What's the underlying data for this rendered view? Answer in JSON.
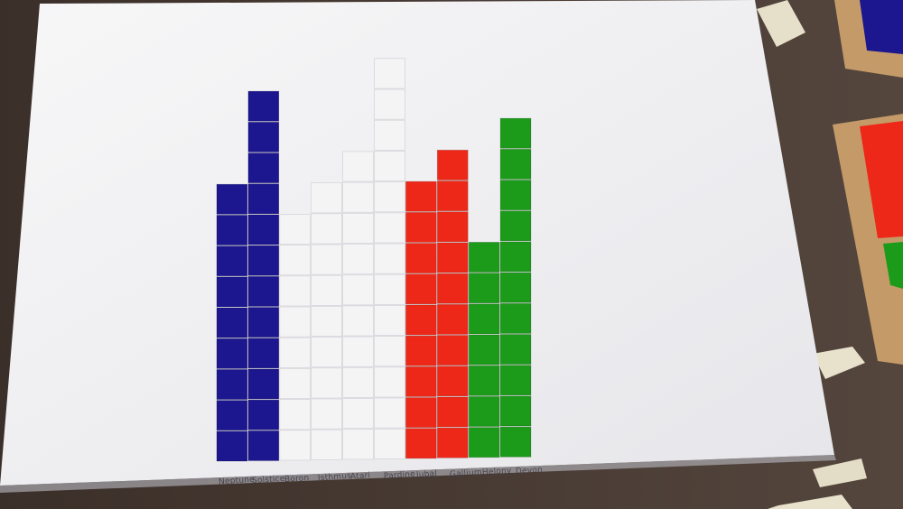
{
  "chart_data": {
    "type": "bar",
    "categories": [
      "Neptune",
      "Solstice",
      "Boron",
      "Isthmus",
      "Atari",
      "Pardine",
      "Jubal",
      "Gallium",
      "Helony",
      "Devon"
    ],
    "values": [
      9,
      12,
      8,
      9,
      10,
      13,
      9,
      10,
      7,
      11
    ],
    "colors": [
      "#1c168f",
      "#1c168f",
      "#f4f4f4",
      "#f4f4f4",
      "#f4f4f4",
      "#f4f4f4",
      "#ee2818",
      "#ee2818",
      "#1c9a1a",
      "#1c9a1a"
    ],
    "unit": "tile",
    "title": "",
    "xlabel": "",
    "ylabel": "",
    "ylim": [
      0,
      13
    ]
  },
  "scene": {
    "paper_color": "#f5f5f6",
    "table_color": "#4a3d36",
    "tape_color": "#e8e1cc",
    "tray_color": "#c49b68"
  }
}
